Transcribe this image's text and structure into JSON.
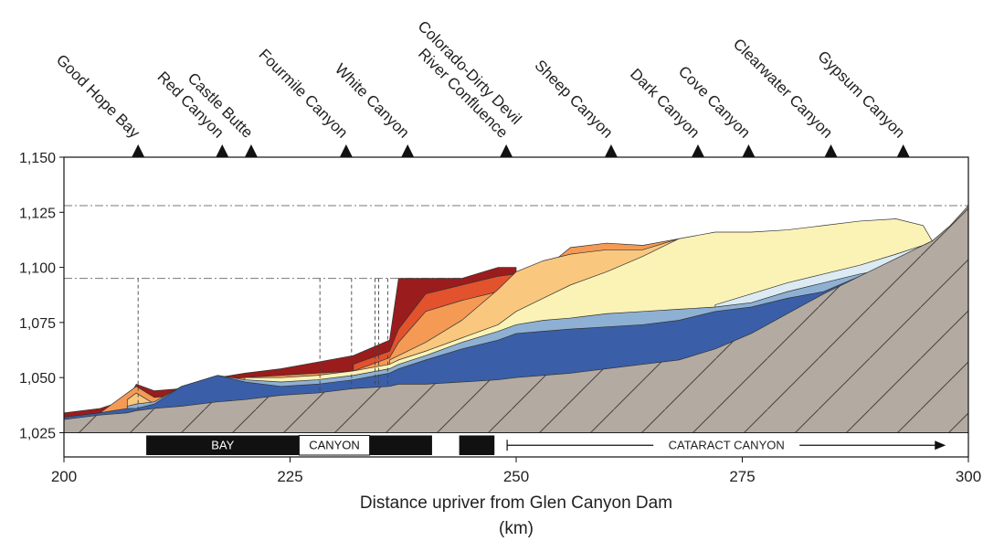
{
  "chart_data": {
    "type": "cross-section",
    "xlabel": "Distance upriver from Glen Canyon Dam",
    "xlabel_unit": "(km)",
    "xlim": [
      200,
      300
    ],
    "xticks": [
      200,
      225,
      250,
      275,
      300
    ],
    "ylim": [
      1014,
      1150
    ],
    "yticks": [
      {
        "value": 1025,
        "label": "1,025"
      },
      {
        "value": 1050,
        "label": "1,050"
      },
      {
        "value": 1075,
        "label": "1,075"
      },
      {
        "value": 1100,
        "label": "1,100"
      },
      {
        "value": 1125,
        "label": "1,125"
      },
      {
        "value": 1150,
        "label": "1,150"
      }
    ],
    "sites": [
      {
        "label": "Good Hope Bay",
        "x": 208.2
      },
      {
        "label": "Red Canyon",
        "x": 217.5
      },
      {
        "label": "Castle Butte",
        "x": 220.7
      },
      {
        "label": "Fourmile Canyon",
        "x": 231.2
      },
      {
        "label": "White Canyon",
        "x": 238
      },
      {
        "label": [
          "Colorado-Dirty Devil",
          "River Confluence"
        ],
        "x": 248.9
      },
      {
        "label": "Sheep Canyon",
        "x": 260.5
      },
      {
        "label": "Dark Canyon",
        "x": 270.1
      },
      {
        "label": "Cove Canyon",
        "x": 275.7
      },
      {
        "label": "Clearwater Canyon",
        "x": 284.8
      },
      {
        "label": "Gypsum Canyon",
        "x": 292.8
      }
    ],
    "hlines": [
      1128,
      1095
    ],
    "dashed_x": [
      208.2,
      228.3,
      231.8,
      234.4,
      234.8,
      235.8
    ],
    "zones": [
      {
        "label": "BAY",
        "start": 209.1,
        "end": 226,
        "color": "#111111"
      },
      {
        "label": "CANYON",
        "start": 226,
        "end": 233.8,
        "color": "#ffffff"
      },
      {
        "start": 233.8,
        "end": 240.7,
        "color": "#111111"
      },
      {
        "start": 243.7,
        "end": 247.6,
        "color": "#111111"
      },
      {
        "label": "CATARACT CANYON",
        "start": 249,
        "end": 297.5,
        "color": "#ffffff",
        "arrow": true
      }
    ],
    "x": [
      200,
      204,
      207,
      208,
      210,
      213,
      217,
      220,
      224,
      228,
      232,
      236,
      237,
      240,
      244,
      248,
      250,
      253,
      256,
      260,
      264,
      268,
      272,
      276,
      280,
      284,
      288,
      292,
      295,
      296,
      298,
      300
    ],
    "series": [
      {
        "color": "#9b1c1c",
        "values": [
          1034,
          1036,
          1040,
          1047,
          1044,
          1045,
          1050,
          1052,
          1054,
          1057,
          1060,
          1067,
          1095,
          1095,
          1095,
          1100,
          1100,
          null,
          null,
          null,
          null,
          null,
          null,
          null,
          null,
          null,
          null,
          null,
          null,
          null,
          null,
          null
        ]
      },
      {
        "color": "#e2522d",
        "values": [
          null,
          null,
          null,
          null,
          null,
          null,
          null,
          null,
          null,
          null,
          1056,
          1062,
          1072,
          1088,
          1092,
          1096,
          1097,
          null,
          null,
          null,
          null,
          null,
          null,
          null,
          null,
          null,
          null,
          null,
          null,
          null,
          null,
          null
        ]
      },
      {
        "color": "#f49a55",
        "values": [
          null,
          1034,
          1043,
          1046,
          1041,
          1042,
          1049,
          1050,
          1051,
          1052,
          1053,
          1059,
          1066,
          1080,
          1085,
          1089,
          1093,
          1099,
          1109,
          1111,
          1110,
          1113,
          null,
          null,
          null,
          null,
          null,
          null,
          null,
          null,
          null,
          null
        ]
      },
      {
        "color": "#f9c77e",
        "values": [
          null,
          null,
          1040,
          1043,
          1038,
          null,
          null,
          null,
          null,
          null,
          null,
          1058,
          1060,
          1066,
          1076,
          1090,
          1098,
          1103,
          1106,
          1108,
          1108,
          1113,
          null,
          null,
          null,
          null,
          null,
          null,
          null,
          null,
          null,
          null
        ]
      },
      {
        "color": "#fbf3b6",
        "values": [
          null,
          null,
          null,
          null,
          null,
          null,
          null,
          1050,
          1050,
          1051,
          1053,
          1056,
          1058,
          1062,
          1068,
          1074,
          1080,
          1086,
          1092,
          1098,
          1105,
          1113,
          1116,
          1116,
          1117,
          1119,
          1121,
          1122,
          1119,
          1112,
          null,
          null
        ]
      },
      {
        "color": "#dcebf3",
        "values": [
          null,
          null,
          null,
          null,
          null,
          null,
          null,
          null,
          null,
          null,
          null,
          null,
          null,
          null,
          null,
          null,
          null,
          null,
          null,
          null,
          null,
          null,
          1083,
          1088,
          1093,
          1097,
          1101,
          1106,
          1110,
          1112,
          null,
          null
        ]
      },
      {
        "color": "#8eb0d3",
        "values": [
          null,
          null,
          1037,
          1038,
          1039,
          1046,
          1051,
          1049,
          1048,
          1049,
          1051,
          1054,
          1056,
          1060,
          1066,
          1071,
          1074,
          1076,
          1077,
          1079,
          1080,
          1081,
          1082,
          1084,
          1089,
          1093,
          1097,
          1100,
          1103,
          1112,
          null,
          null
        ]
      },
      {
        "color": "#3a5fa8",
        "values": [
          1032,
          1034,
          1036,
          1036,
          1038,
          1046,
          1051,
          1048,
          1046,
          1047,
          1049,
          1052,
          1054,
          1058,
          1063,
          1067,
          1070,
          1071,
          1072,
          1073,
          1074,
          1076,
          1080,
          1082,
          1086,
          1089,
          1096,
          null,
          null,
          null,
          null,
          null
        ]
      }
    ],
    "bedrock": {
      "color": "#b3aaa2",
      "values": [
        1031,
        1033,
        1034,
        1035,
        1036,
        1037,
        1039,
        1040,
        1042,
        1043,
        1045,
        1046,
        1047,
        1047,
        1048,
        1049,
        1050,
        1051,
        1052,
        1054,
        1056,
        1058,
        1063,
        1070,
        1079,
        1088,
        1096,
        1104,
        1110,
        1112,
        1119,
        1128
      ]
    }
  }
}
